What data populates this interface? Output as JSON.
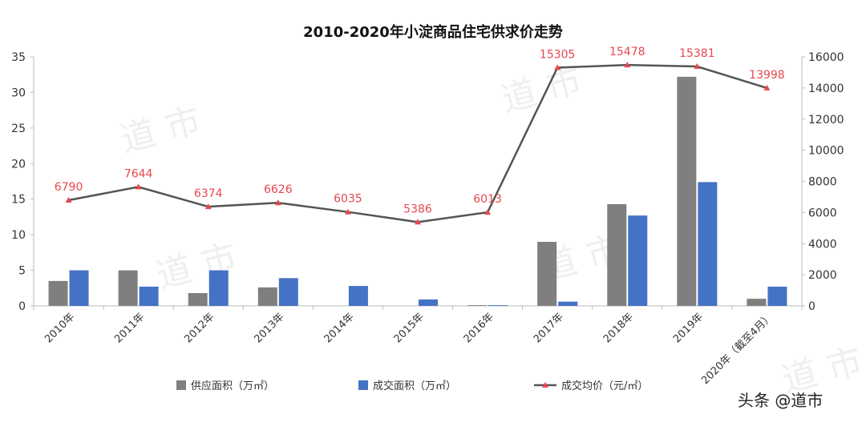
{
  "chart_data": {
    "type": "bar+line",
    "title": "2010-2020年小淀商品住宅供求价走势",
    "categories": [
      "2010年",
      "2011年",
      "2012年",
      "2013年",
      "2014年",
      "2015年",
      "2016年",
      "2017年",
      "2018年",
      "2019年",
      "2020年（截至4月）"
    ],
    "series": [
      {
        "name": "供应面积（万㎡）",
        "type": "bar",
        "axis": "left",
        "color": "#7f7f7f",
        "values": [
          3.5,
          5.0,
          1.8,
          2.6,
          0,
          0,
          0.1,
          9.0,
          14.3,
          32.2,
          1.0
        ]
      },
      {
        "name": "成交面积（万㎡）",
        "type": "bar",
        "axis": "left",
        "color": "#4472c4",
        "values": [
          5.0,
          2.7,
          5.0,
          3.9,
          2.8,
          0.9,
          0.1,
          0.6,
          12.7,
          17.4,
          2.7
        ]
      },
      {
        "name": "成交均价（元/㎡）",
        "type": "line",
        "axis": "right",
        "color": "#555555",
        "marker_color": "#e8474f",
        "values": [
          6790,
          7644,
          6374,
          6626,
          6035,
          5386,
          6013,
          15305,
          15478,
          15381,
          13998
        ]
      }
    ],
    "y_left": {
      "range": [
        0,
        35
      ],
      "ticks": [
        "0",
        "5",
        "10",
        "15",
        "20",
        "25",
        "30",
        "35"
      ]
    },
    "y_right": {
      "range": [
        0,
        16000
      ],
      "ticks": [
        "0",
        "2000",
        "4000",
        "6000",
        "8000",
        "10000",
        "12000",
        "14000",
        "16000"
      ]
    },
    "data_labels": [
      "6790",
      "7644",
      "6374",
      "6626",
      "6035",
      "5386",
      "6013",
      "15305",
      "15478",
      "15381",
      "13998"
    ],
    "grid": false,
    "legend_position": "bottom"
  },
  "watermark": "道 市",
  "credit": "头条 @道市"
}
